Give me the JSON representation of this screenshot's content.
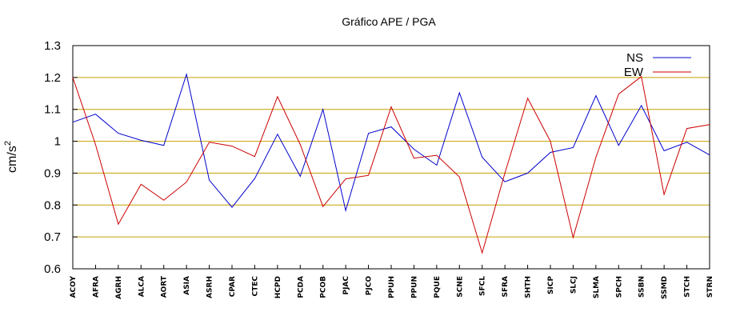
{
  "chart_data": {
    "type": "line",
    "title": "Gráfico  APE / PGA",
    "ylabel": "cm/s",
    "ylabel_sup": "2",
    "xlabel": "",
    "ylim": [
      0.6,
      1.3
    ],
    "yticks": [
      "0.6",
      "0.7",
      "0.8",
      "0.9",
      "1",
      "1.1",
      "1.2",
      "1.3"
    ],
    "ytick_values": [
      0.6,
      0.7,
      0.8,
      0.9,
      1.0,
      1.1,
      1.2,
      1.3
    ],
    "grid": "horizontal",
    "legend_position": "top-right",
    "categories": [
      "ACOY",
      "AFRA",
      "AGRH",
      "ALCA",
      "AORT",
      "ASIA",
      "ASRH",
      "CPAR",
      "CTEC",
      "HCPD",
      "PCDA",
      "PCOB",
      "PJAC",
      "PJCO",
      "PPUH",
      "PPUN",
      "PQUE",
      "SCNE",
      "SFCL",
      "SFRA",
      "SHTH",
      "SICP",
      "SLCJ",
      "SLMA",
      "SPCH",
      "SSBN",
      "SSMD",
      "STCH",
      "STRN"
    ],
    "series": [
      {
        "name": "NS",
        "color": "#0000cc",
        "values": [
          1.06,
          1.085,
          1.025,
          1.003,
          0.987,
          1.21,
          0.878,
          0.793,
          0.883,
          1.022,
          0.89,
          1.1,
          0.783,
          1.025,
          1.045,
          0.975,
          0.925,
          1.152,
          0.95,
          0.873,
          0.9,
          0.965,
          0.98,
          1.143,
          0.987,
          1.112,
          0.97,
          0.997,
          0.957
        ]
      },
      {
        "name": "EW",
        "color": "#cc0000",
        "values": [
          1.2,
          0.99,
          0.74,
          0.865,
          0.815,
          0.872,
          0.997,
          0.985,
          0.952,
          1.14,
          0.99,
          0.795,
          0.882,
          0.893,
          1.108,
          0.947,
          0.956,
          0.888,
          0.65,
          0.9,
          1.135,
          1.0,
          0.698,
          0.95,
          1.148,
          1.203,
          0.833,
          1.04,
          1.052
        ]
      }
    ],
    "colors": {
      "grid": "#c8a000",
      "axis": "#000000"
    }
  }
}
